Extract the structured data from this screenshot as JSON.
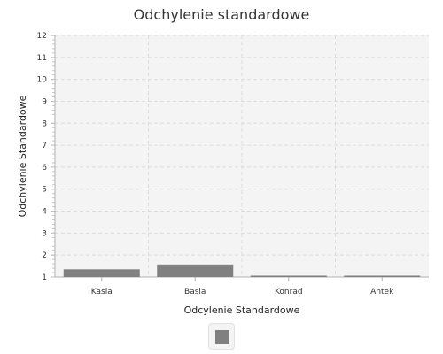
{
  "chart_data": {
    "type": "bar",
    "title": "Odchylenie standardowe",
    "xlabel": "Odcylenie Standardowe",
    "ylabel": "Odchylenie Standardowe",
    "categories": [
      "Kasia",
      "Basia",
      "Konrad",
      "Antek"
    ],
    "values": [
      1.35,
      1.57,
      1.0,
      1.0
    ],
    "ylim": [
      1,
      12
    ],
    "yticks": [
      1,
      2,
      3,
      4,
      5,
      6,
      7,
      8,
      9,
      10,
      11,
      12
    ],
    "grid": true,
    "legend": "bottom-center"
  },
  "colors": {
    "bar": "#808080",
    "plot_background": "#f4f4f4",
    "grid": "#dcdcdc",
    "axis": "#b0b0b0"
  }
}
